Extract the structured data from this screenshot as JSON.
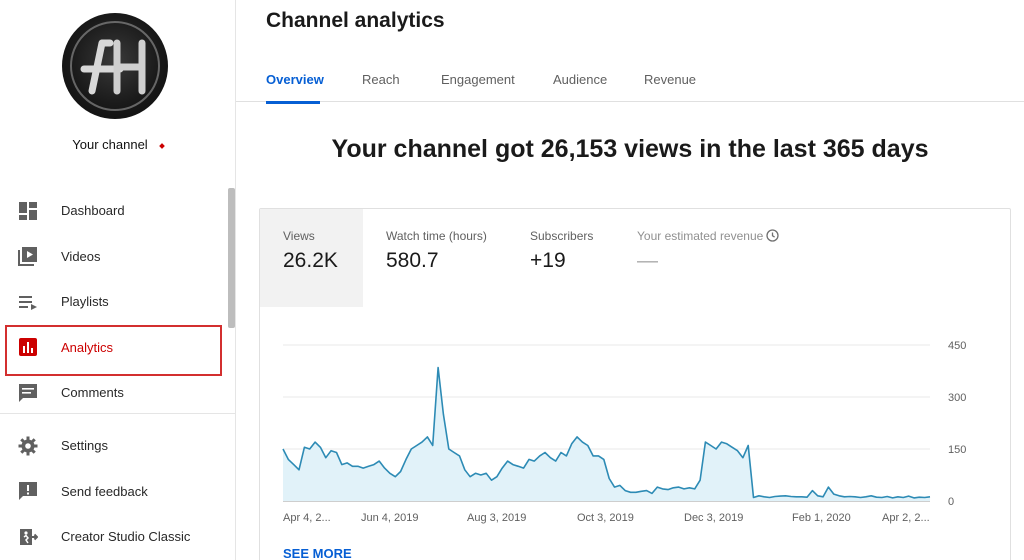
{
  "sidebar": {
    "channel_label": "Your channel",
    "avatar_initials": "AH",
    "items": [
      {
        "label": "Dashboard",
        "icon": "dashboard-icon"
      },
      {
        "label": "Videos",
        "icon": "videos-icon"
      },
      {
        "label": "Playlists",
        "icon": "playlists-icon"
      },
      {
        "label": "Analytics",
        "icon": "analytics-icon",
        "active": true
      },
      {
        "label": "Comments",
        "icon": "comments-icon"
      },
      {
        "label": "Settings",
        "icon": "settings-icon"
      },
      {
        "label": "Send feedback",
        "icon": "feedback-icon"
      },
      {
        "label": "Creator Studio Classic",
        "icon": "creator-studio-icon"
      }
    ]
  },
  "page": {
    "title": "Channel analytics",
    "tabs": [
      "Overview",
      "Reach",
      "Engagement",
      "Audience",
      "Revenue"
    ],
    "active_tab": "Overview",
    "headline": "Your channel got 26,153 views in the last 365 days"
  },
  "metrics": [
    {
      "label": "Views",
      "value": "26.2K",
      "selected": true
    },
    {
      "label": "Watch time (hours)",
      "value": "580.7"
    },
    {
      "label": "Subscribers",
      "value": "+19"
    },
    {
      "label": "Your estimated revenue",
      "value": "—",
      "muted": true
    }
  ],
  "see_more_label": "SEE MORE",
  "colors": {
    "accent": "#065fd4",
    "active_nav": "#cc0000",
    "line": "#2d8bb5",
    "fill": "#e1f2f9"
  },
  "chart_data": {
    "type": "area",
    "y_ticks": [
      "450",
      "300",
      "150",
      "0"
    ],
    "ylim": [
      0,
      450
    ],
    "x_labels": [
      "Apr 4, 2...",
      "Jun 4, 2019",
      "Aug 3, 2019",
      "Oct 3, 2019",
      "Dec 3, 2019",
      "Feb 1, 2020",
      "Apr 2, 2..."
    ],
    "values": [
      150,
      120,
      105,
      90,
      155,
      150,
      170,
      155,
      125,
      145,
      140,
      105,
      110,
      100,
      100,
      95,
      100,
      105,
      115,
      95,
      80,
      70,
      85,
      120,
      150,
      160,
      170,
      185,
      160,
      385,
      250,
      150,
      140,
      130,
      90,
      70,
      80,
      75,
      80,
      60,
      70,
      95,
      115,
      105,
      100,
      95,
      120,
      115,
      130,
      140,
      125,
      115,
      140,
      130,
      165,
      185,
      170,
      160,
      130,
      130,
      120,
      65,
      40,
      45,
      30,
      25,
      25,
      28,
      30,
      22,
      40,
      35,
      33,
      38,
      40,
      35,
      38,
      35,
      60,
      170,
      160,
      150,
      170,
      165,
      155,
      145,
      125,
      160,
      10,
      15,
      12,
      10,
      13,
      14,
      15,
      13,
      12,
      12,
      11,
      30,
      15,
      12,
      40,
      20,
      15,
      12,
      13,
      12,
      10,
      12,
      15,
      11,
      10,
      13,
      9,
      12,
      10,
      14,
      9,
      11,
      10,
      12
    ]
  }
}
